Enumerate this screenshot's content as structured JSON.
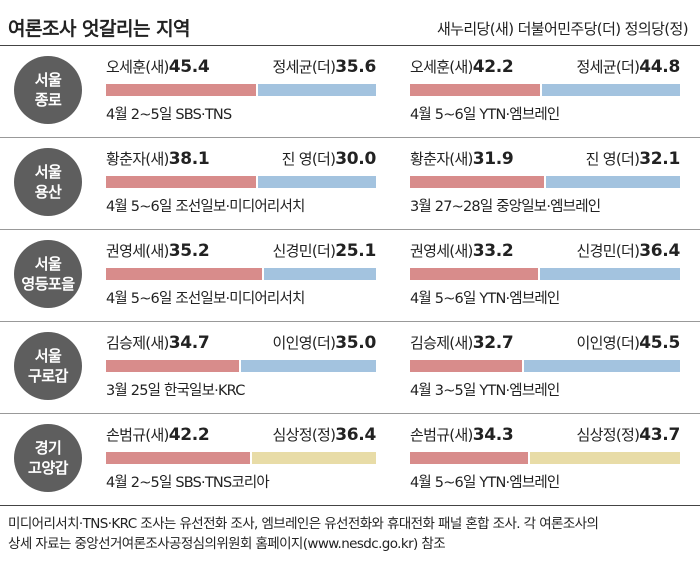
{
  "title": "여론조사 엇갈리는 지역",
  "legend": "새누리당(새) 더불어민주당(더) 정의당(정)",
  "colors": {
    "sae": "#d88c8b",
    "deo": "#a3c3df",
    "jeong": "#e8dca7",
    "circle": "#5e5e5e"
  },
  "chart_data": {
    "type": "bar",
    "title": "여론조사 엇갈리는 지역",
    "regions": [
      {
        "label_lines": [
          "서울",
          "종로"
        ],
        "polls": [
          {
            "left": {
              "name": "오세훈(새)",
              "value": 45.4,
              "party": "sae"
            },
            "right": {
              "name": "정세균(더)",
              "value": 35.6,
              "party": "deo"
            },
            "source": "4월 2~5일 SBS·TNS"
          },
          {
            "left": {
              "name": "오세훈(새)",
              "value": 42.2,
              "party": "sae"
            },
            "right": {
              "name": "정세균(더)",
              "value": 44.8,
              "party": "deo"
            },
            "source": "4월 5~6일 YTN·엠브레인"
          }
        ]
      },
      {
        "label_lines": [
          "서울",
          "용산"
        ],
        "polls": [
          {
            "left": {
              "name": "황춘자(새)",
              "value": 38.1,
              "party": "sae"
            },
            "right": {
              "name": "진 영(더)",
              "value": 30.0,
              "party": "deo"
            },
            "source": "4월 5~6일 조선일보·미디어리서치"
          },
          {
            "left": {
              "name": "황춘자(새)",
              "value": 31.9,
              "party": "sae"
            },
            "right": {
              "name": "진 영(더)",
              "value": 32.1,
              "party": "deo"
            },
            "source": "3월 27~28일 중앙일보·엠브레인"
          }
        ]
      },
      {
        "label_lines": [
          "서울",
          "영등포을"
        ],
        "polls": [
          {
            "left": {
              "name": "권영세(새)",
              "value": 35.2,
              "party": "sae"
            },
            "right": {
              "name": "신경민(더)",
              "value": 25.1,
              "party": "deo"
            },
            "source": "4월 5~6일 조선일보·미디어리서치"
          },
          {
            "left": {
              "name": "권영세(새)",
              "value": 33.2,
              "party": "sae"
            },
            "right": {
              "name": "신경민(더)",
              "value": 36.4,
              "party": "deo"
            },
            "source": "4월 5~6일 YTN·엠브레인"
          }
        ]
      },
      {
        "label_lines": [
          "서울",
          "구로갑"
        ],
        "polls": [
          {
            "left": {
              "name": "김승제(새)",
              "value": 34.7,
              "party": "sae"
            },
            "right": {
              "name": "이인영(더)",
              "value": 35.0,
              "party": "deo"
            },
            "source": "3월 25일 한국일보·KRC"
          },
          {
            "left": {
              "name": "김승제(새)",
              "value": 32.7,
              "party": "sae"
            },
            "right": {
              "name": "이인영(더)",
              "value": 45.5,
              "party": "deo"
            },
            "source": "4월 3~5일 YTN·엠브레인"
          }
        ]
      },
      {
        "label_lines": [
          "경기",
          "고양갑"
        ],
        "polls": [
          {
            "left": {
              "name": "손범규(새)",
              "value": 42.2,
              "party": "sae"
            },
            "right": {
              "name": "심상정(정)",
              "value": 36.4,
              "party": "jeong"
            },
            "source": "4월 2~5일 SBS·TNS코리아"
          },
          {
            "left": {
              "name": "손범규(새)",
              "value": 34.3,
              "party": "sae"
            },
            "right": {
              "name": "심상정(정)",
              "value": 43.7,
              "party": "jeong"
            },
            "source": "4월 5~6일 YTN·엠브레인"
          }
        ]
      }
    ]
  },
  "footnote": [
    "미디어리서치·TNS·KRC 조사는 유선전화 조사, 엠브레인은 유선전화와 휴대전화 패널 혼합 조사. 각 여론조사의",
    "상세 자료는 중앙선거여론조사공정심의위원회 홈페이지(www.nesdc.go.kr) 참조"
  ]
}
